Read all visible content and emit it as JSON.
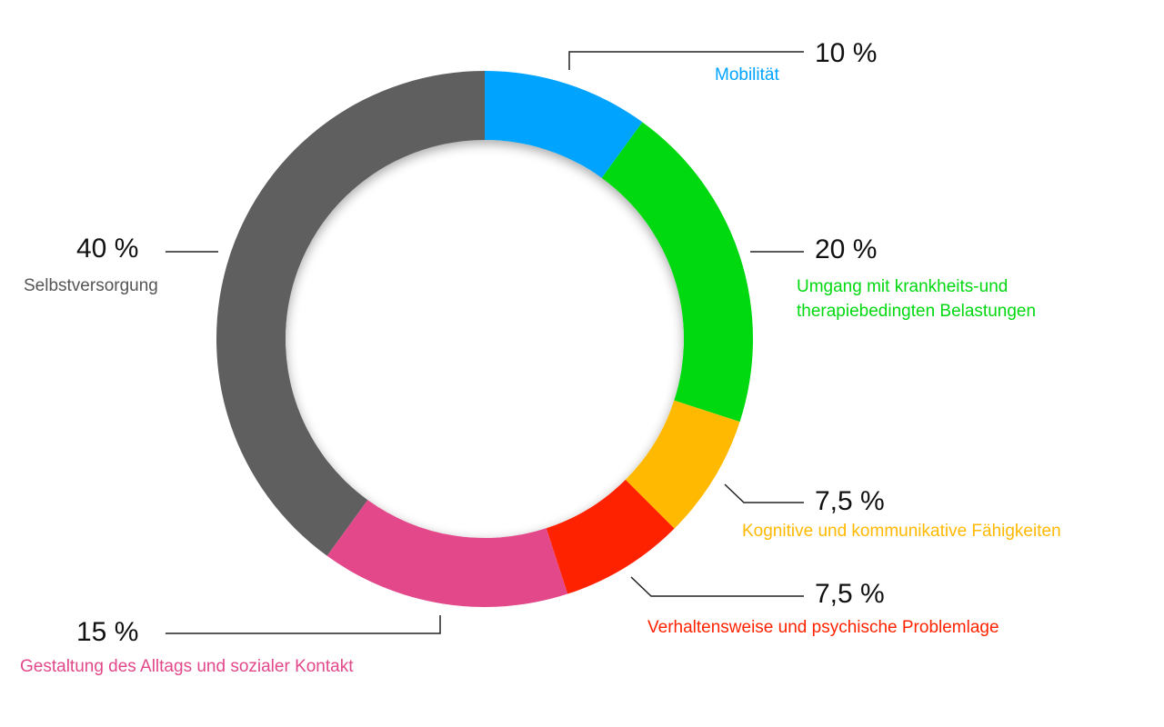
{
  "chart_data": {
    "type": "pie",
    "variant": "donut",
    "slices": [
      {
        "label": "Mobilität",
        "value": 10,
        "display": "10 %",
        "color": "#00a4ff"
      },
      {
        "label": "Umgang mit krankheits-und\ntherapiebedingten Belastungen",
        "value": 20,
        "display": "20 %",
        "color": "#00d810"
      },
      {
        "label": "Kognitive und kommunikative Fähigkeiten",
        "value": 7.5,
        "display": "7,5 %",
        "color": "#ffb900"
      },
      {
        "label": "Verhaltensweise und psychische Problemlage",
        "value": 7.5,
        "display": "7,5 %",
        "color": "#ff2200"
      },
      {
        "label": "Gestaltung des Alltags und sozialer Kontakt",
        "value": 15,
        "display": "15 %",
        "color": "#e2488a"
      },
      {
        "label": "Selbstversorgung",
        "value": 40,
        "display": "40 %",
        "color": "#5f5f5f"
      }
    ],
    "start_angle_deg": 0,
    "direction": "clockwise"
  }
}
